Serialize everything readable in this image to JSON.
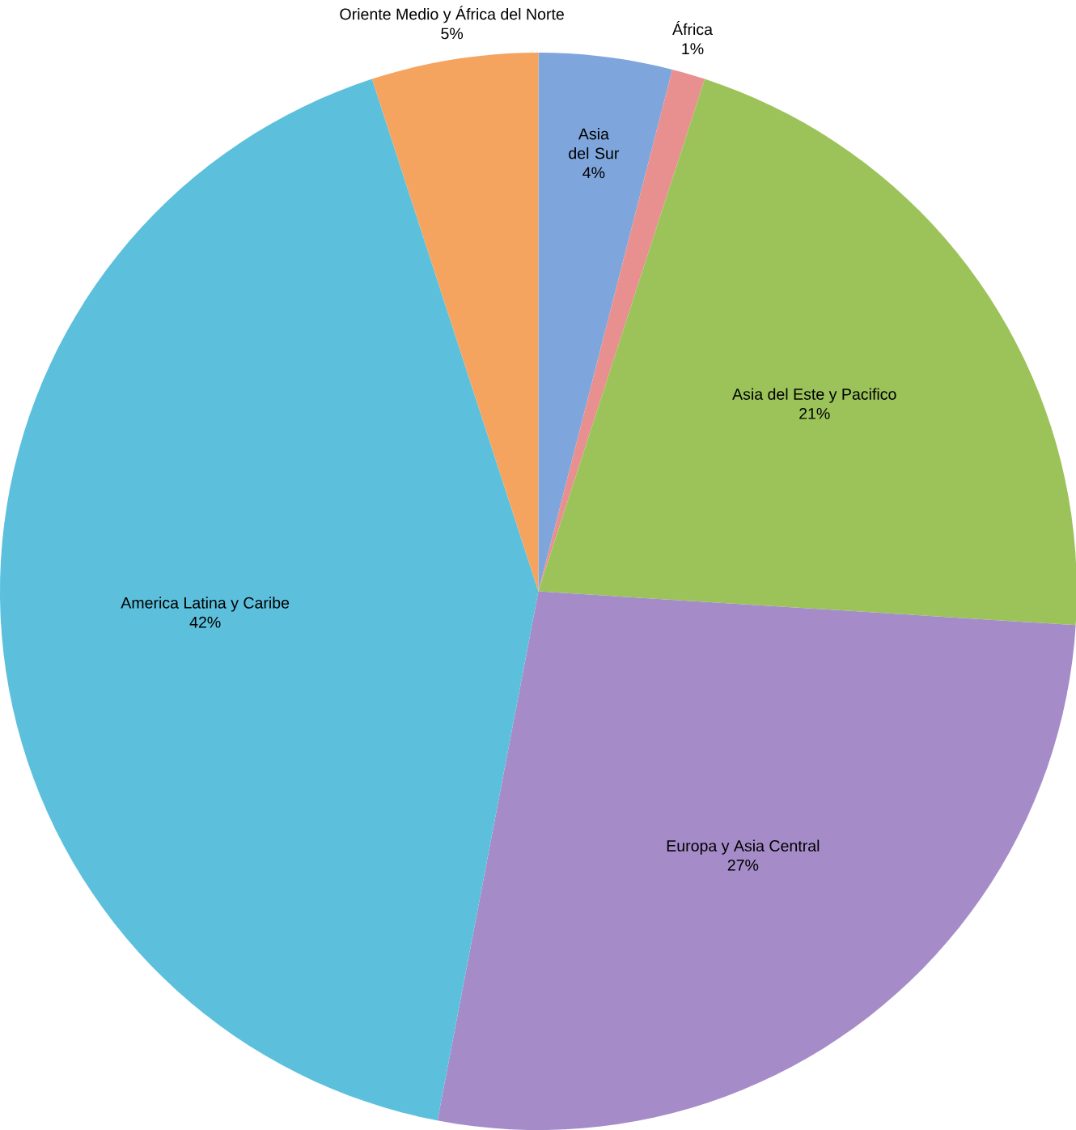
{
  "chart_data": {
    "type": "pie",
    "categories": [
      "Asia del Sur",
      "África",
      "Asia del Este y Pacifico",
      "Europa y Asia Central",
      "America Latina y Caribe",
      "Oriente Medio y África del Norte"
    ],
    "values": [
      4,
      1,
      21,
      27,
      42,
      5
    ],
    "colors": [
      "#7ea6dd",
      "#e8908f",
      "#9cc35a",
      "#a58cc8",
      "#5cc0dc",
      "#f5a45f"
    ],
    "value_labels": [
      "4%",
      "1%",
      "21%",
      "27%",
      "42%",
      "5%"
    ]
  }
}
